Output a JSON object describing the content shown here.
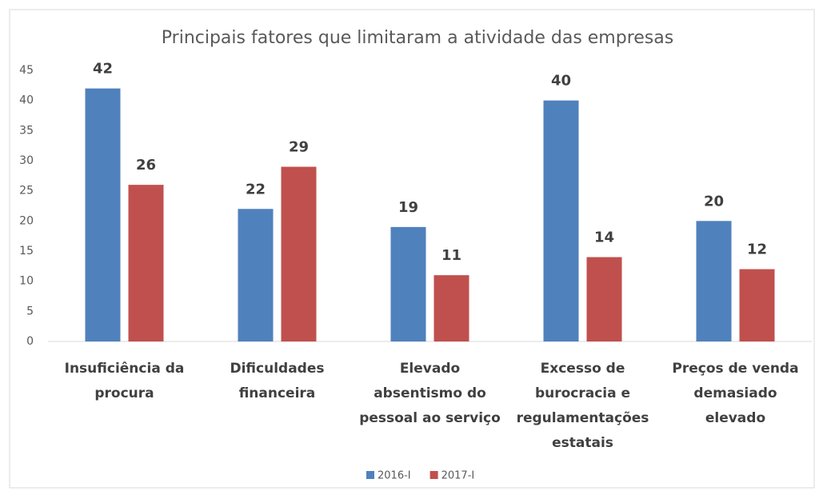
{
  "chart_data": {
    "type": "bar",
    "title": "Principais fatores que limitaram a atividade das empresas",
    "categories": [
      "Insuficiência da\nprocura",
      "Dificuldades\nfinanceira",
      "Elevado\nabsentismo do\npessoal ao serviço",
      "Excesso de\nburocracia e\nregulamentações\nestatais",
      "Preços de venda\ndemasiado\nelevado"
    ],
    "series": [
      {
        "name": "2016-I",
        "color": "#4f81bd",
        "values": [
          42,
          22,
          19,
          40,
          20
        ]
      },
      {
        "name": "2017-I",
        "color": "#c0504d",
        "values": [
          26,
          29,
          11,
          14,
          12
        ]
      }
    ],
    "ylim": [
      0,
      45
    ],
    "yticks": [
      0,
      5,
      10,
      15,
      20,
      25,
      30,
      35,
      40,
      45
    ],
    "grid": false,
    "legend": "bottom"
  }
}
